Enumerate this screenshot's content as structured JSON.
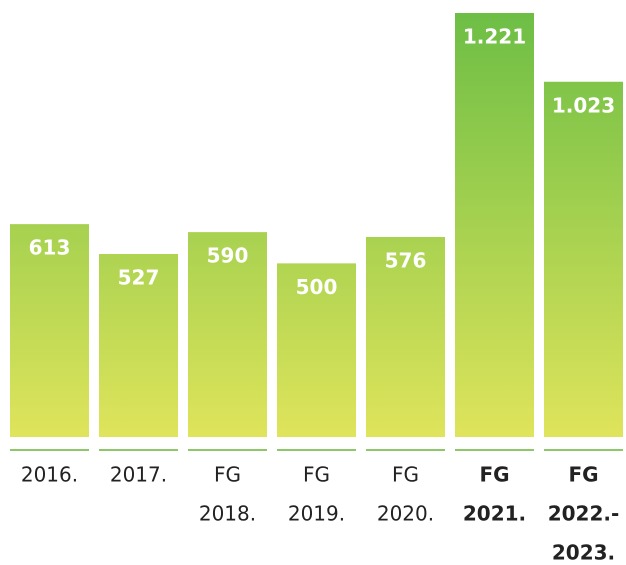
{
  "chart_data": {
    "type": "bar",
    "categories": [
      [
        "2016."
      ],
      [
        "2017."
      ],
      [
        "FG",
        "2018."
      ],
      [
        "FG",
        "2019."
      ],
      [
        "FG",
        "2020."
      ],
      [
        "FG",
        "2021."
      ],
      [
        "FG",
        "2022.-",
        "2023."
      ]
    ],
    "values": [
      613,
      527,
      590,
      500,
      576,
      1221,
      1023
    ],
    "value_labels": [
      "613",
      "527",
      "590",
      "500",
      "576",
      "1.221",
      "1.023"
    ],
    "bold": [
      false,
      false,
      false,
      false,
      false,
      true,
      true
    ],
    "color": [
      "#6dbe45",
      "#dfe45b"
    ]
  }
}
